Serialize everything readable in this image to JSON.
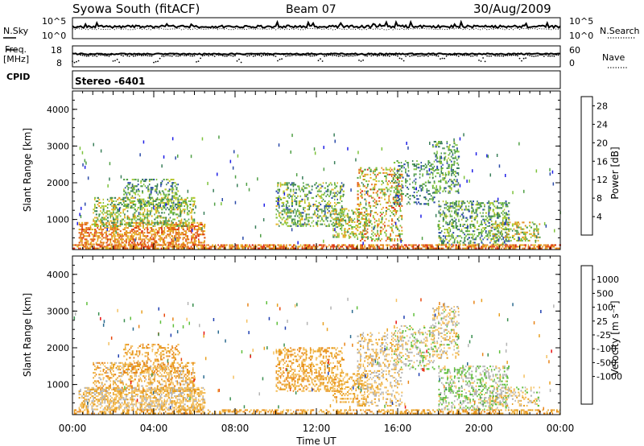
{
  "header": {
    "station": "Syowa South (fitACF)",
    "beam": "Beam 07",
    "date": "30/Aug/2009"
  },
  "noise_panel": {
    "left_label": "N.Sky",
    "right_label": "N.Search",
    "left_ticks": [
      "10^5",
      "10^0"
    ],
    "right_ticks": [
      "10^5",
      "10^0"
    ]
  },
  "freq_panel": {
    "left_label_1": "Freq.",
    "left_label_2": "[MHz]",
    "right_label": "Nave",
    "left_ticks": [
      "18",
      "8"
    ],
    "right_ticks": [
      "60",
      "0"
    ]
  },
  "cpid_panel": {
    "label": "CPID",
    "value": "Stereo -6401"
  },
  "colors": {
    "power": [
      "#1f1fe6",
      "#2a4aa8",
      "#3a7f5a",
      "#4f9f45",
      "#7cc23a",
      "#b7c72d",
      "#e5b521",
      "#e48a1a",
      "#e35e16",
      "#d92a10"
    ],
    "velocity": [
      "#e81010",
      "#e84a10",
      "#e88418",
      "#e8a020",
      "#f4c060",
      "#b4b4b4",
      "#5fbf3b",
      "#3a8f4f",
      "#2a6a8f",
      "#1f3fb0"
    ]
  },
  "chart_data": [
    {
      "type": "heatmap",
      "name": "power",
      "x_unit": "hours UT",
      "xlim": [
        0,
        24
      ],
      "ylim": [
        180,
        4500
      ],
      "ylabel": "Slant Range [km]",
      "yticks": [
        1000,
        2000,
        3000,
        4000
      ],
      "xticks": [
        "00:00",
        "04:00",
        "08:00",
        "12:00",
        "16:00",
        "20:00",
        "00:00"
      ],
      "colorbar": {
        "label": "Power [dB]",
        "ticks": [
          "4",
          "8",
          "12",
          "16",
          "20",
          "24",
          "28"
        ],
        "range": [
          0,
          30
        ]
      },
      "blobs": [
        {
          "t": [
            0.3,
            6.5
          ],
          "r": [
            300,
            900
          ],
          "density": 0.55,
          "level": [
            18,
            28
          ]
        },
        {
          "t": [
            1.0,
            6.0
          ],
          "r": [
            800,
            1600
          ],
          "density": 0.4,
          "level": [
            6,
            22
          ]
        },
        {
          "t": [
            2.5,
            5.3
          ],
          "r": [
            1300,
            2100
          ],
          "density": 0.3,
          "level": [
            4,
            18
          ]
        },
        {
          "t": [
            10.0,
            13.3
          ],
          "r": [
            800,
            2000
          ],
          "density": 0.35,
          "level": [
            4,
            20
          ]
        },
        {
          "t": [
            12.8,
            14.5
          ],
          "r": [
            500,
            1300
          ],
          "density": 0.35,
          "level": [
            8,
            24
          ]
        },
        {
          "t": [
            14.0,
            16.2
          ],
          "r": [
            400,
            2400
          ],
          "density": 0.3,
          "level": [
            8,
            28
          ]
        },
        {
          "t": [
            15.8,
            17.8
          ],
          "r": [
            1400,
            2600
          ],
          "density": 0.25,
          "level": [
            4,
            14
          ]
        },
        {
          "t": [
            17.7,
            19.0
          ],
          "r": [
            1700,
            3100
          ],
          "density": 0.35,
          "level": [
            4,
            16
          ]
        },
        {
          "t": [
            18.0,
            21.5
          ],
          "r": [
            300,
            1500
          ],
          "density": 0.35,
          "level": [
            4,
            18
          ]
        },
        {
          "t": [
            20.5,
            23.0
          ],
          "r": [
            400,
            900
          ],
          "density": 0.3,
          "level": [
            8,
            24
          ]
        },
        {
          "t": [
            0.0,
            24.0
          ],
          "r": [
            190,
            320
          ],
          "density": 0.7,
          "level": [
            18,
            30
          ]
        }
      ]
    },
    {
      "type": "heatmap",
      "name": "velocity",
      "x_unit": "hours UT",
      "xlim": [
        0,
        24
      ],
      "ylim": [
        180,
        4500
      ],
      "xlabel": "Time UT",
      "ylabel": "Slant Range [km]",
      "yticks": [
        1000,
        2000,
        3000,
        4000
      ],
      "xticks": [
        "00:00",
        "04:00",
        "08:00",
        "12:00",
        "16:00",
        "20:00",
        "00:00"
      ],
      "colorbar": {
        "label": "Velocity [m s⁻¹]",
        "ticks": [
          "1000",
          "500",
          "100",
          "25",
          "-25",
          "-100",
          "-500",
          "-1000"
        ],
        "range": [
          -1200,
          1200
        ]
      },
      "blobs": [
        {
          "t": [
            0.3,
            6.5
          ],
          "r": [
            300,
            900
          ],
          "density": 0.55,
          "level": [
            -400,
            150
          ]
        },
        {
          "t": [
            1.0,
            6.0
          ],
          "r": [
            800,
            1600
          ],
          "density": 0.4,
          "level": [
            -600,
            100
          ]
        },
        {
          "t": [
            2.5,
            5.3
          ],
          "r": [
            1300,
            2100
          ],
          "density": 0.3,
          "level": [
            -700,
            -50
          ]
        },
        {
          "t": [
            10.0,
            13.3
          ],
          "r": [
            800,
            2000
          ],
          "density": 0.35,
          "level": [
            -600,
            -50
          ]
        },
        {
          "t": [
            12.8,
            14.5
          ],
          "r": [
            500,
            1300
          ],
          "density": 0.35,
          "level": [
            -500,
            -30
          ]
        },
        {
          "t": [
            14.0,
            16.2
          ],
          "r": [
            400,
            2400
          ],
          "density": 0.3,
          "level": [
            -400,
            200
          ]
        },
        {
          "t": [
            15.8,
            17.8
          ],
          "r": [
            1400,
            2600
          ],
          "density": 0.25,
          "level": [
            -200,
            400
          ]
        },
        {
          "t": [
            17.7,
            19.0
          ],
          "r": [
            1700,
            3100
          ],
          "density": 0.35,
          "level": [
            -300,
            300
          ]
        },
        {
          "t": [
            18.0,
            21.5
          ],
          "r": [
            300,
            1500
          ],
          "density": 0.35,
          "level": [
            -100,
            500
          ]
        },
        {
          "t": [
            20.5,
            23.0
          ],
          "r": [
            400,
            900
          ],
          "density": 0.3,
          "level": [
            -300,
            300
          ]
        },
        {
          "t": [
            0.0,
            24.0
          ],
          "r": [
            190,
            320
          ],
          "density": 0.4,
          "level": [
            -600,
            -150
          ]
        }
      ]
    }
  ]
}
